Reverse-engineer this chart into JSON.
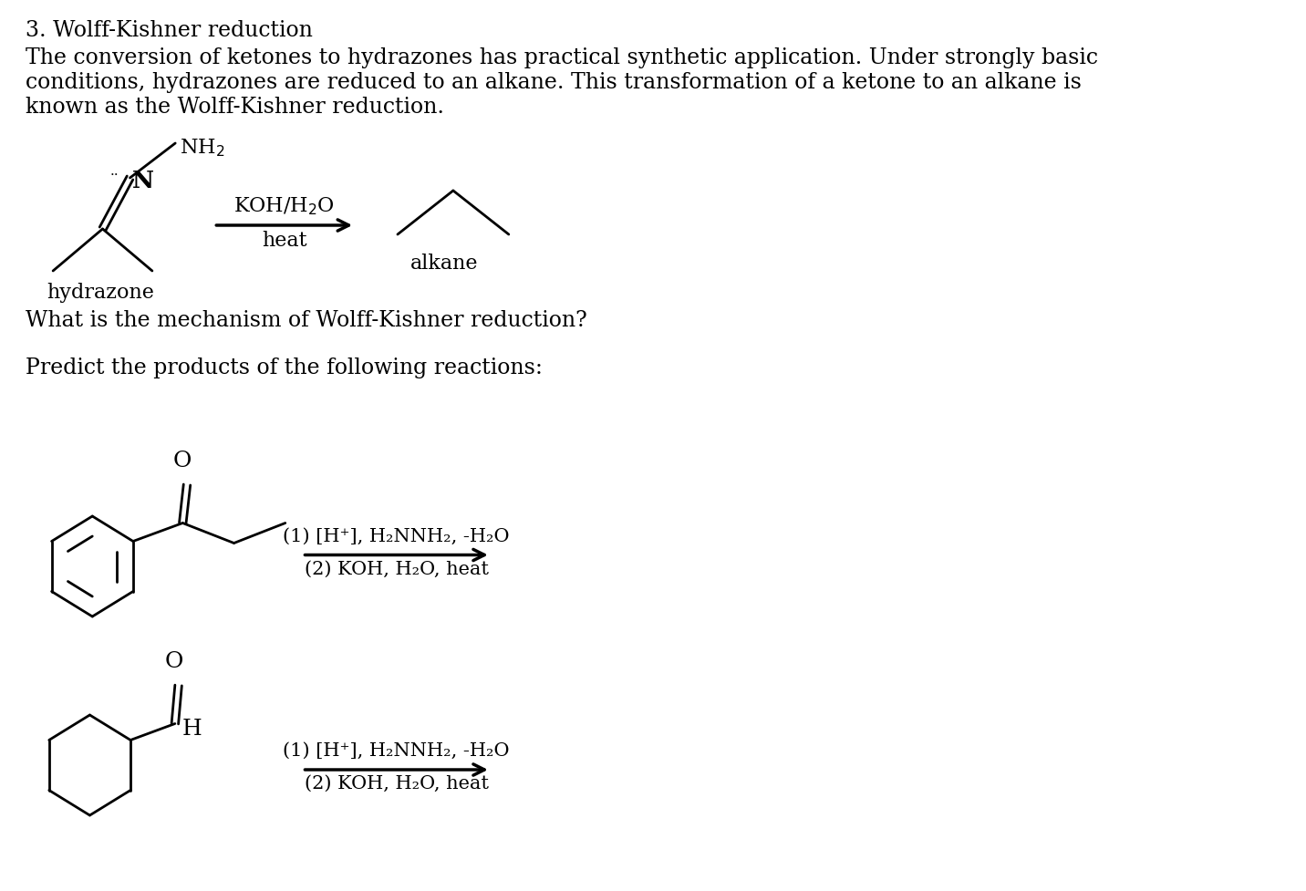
{
  "bg_color": "#ffffff",
  "text_color": "#000000",
  "title": "3. Wolff-Kishner reduction",
  "para1": "The conversion of ketones to hydrazones has practical synthetic application. Under strongly basic",
  "para2": "conditions, hydrazones are reduced to an alkane. This transformation of a ketone to an alkane is",
  "para3": "known as the Wolff-Kishner reduction.",
  "question": "What is the mechanism of Wolff-Kishner reduction?",
  "predict_text": "Predict the products of the following reactions:",
  "hydrazone_label": "hydrazone",
  "alkane_label": "alkane",
  "rxn1_step1": "(1) [H⁺], H₂NNH₂, -H₂O",
  "rxn1_step2": "(2) KOH, H₂O, heat",
  "rxn2_step1": "(1) [H⁺], H₂NNH₂, -H₂O",
  "rxn2_step2": "(2) KOH, H₂O, heat",
  "font_size": 17,
  "lw": 2.0
}
